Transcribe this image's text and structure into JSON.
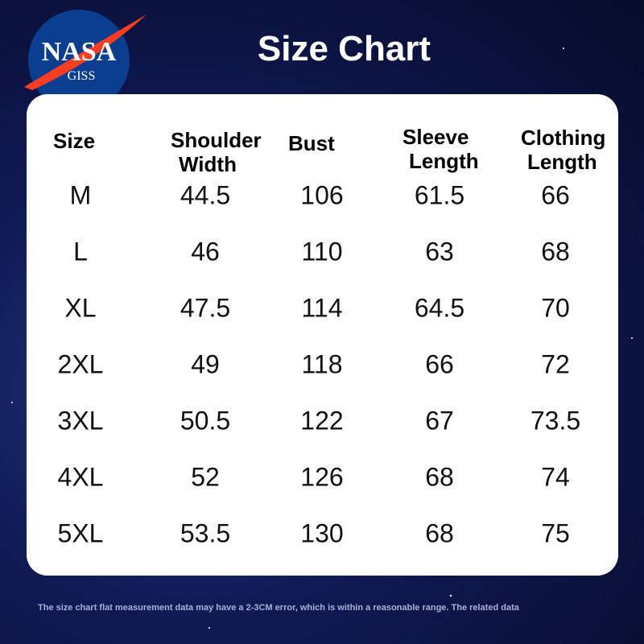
{
  "logo": {
    "title": "NASA",
    "subtitle": "GISS"
  },
  "title": "Size Chart",
  "table": {
    "headers": [
      [
        "Size"
      ],
      [
        "Shoulder",
        "Width"
      ],
      [
        "Bust"
      ],
      [
        "Sleeve",
        "Length"
      ],
      [
        "Clothing",
        "Length"
      ]
    ],
    "rows": [
      [
        "M",
        44.5,
        106,
        61.5,
        66
      ],
      [
        "L",
        46,
        110,
        63,
        68
      ],
      [
        "XL",
        47.5,
        114,
        64.5,
        70
      ],
      [
        "2XL",
        49,
        118,
        66,
        72
      ],
      [
        "3XL",
        50.5,
        122,
        67,
        73.5
      ],
      [
        "4XL",
        52,
        126,
        68,
        74
      ],
      [
        "5XL",
        53.5,
        130,
        68,
        75
      ]
    ]
  },
  "note": "The size chart flat measurement data may have a 2-3CM error, which is within a reasonable range. The related data"
}
